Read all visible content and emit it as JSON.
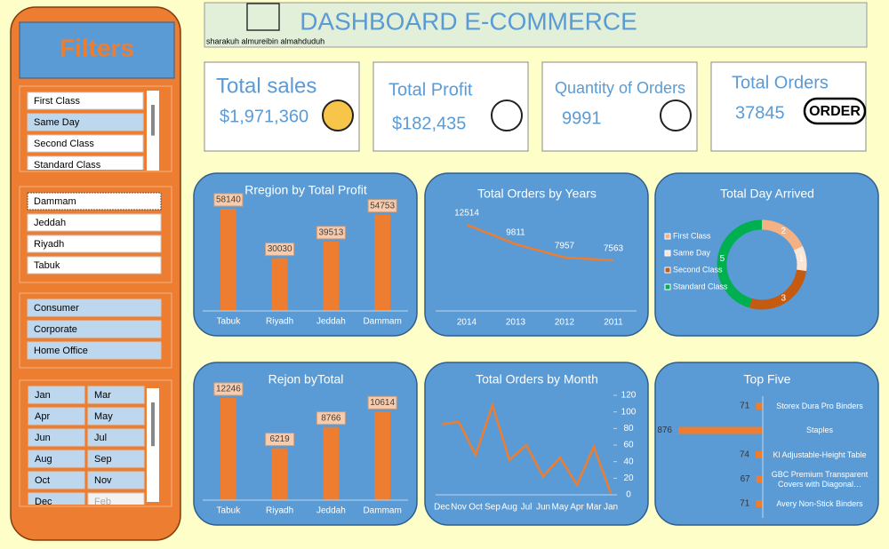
{
  "header": {
    "title": "DASHBOARD E-COMMERCE",
    "author": "sharakuh almureibin almahduduh"
  },
  "filters": {
    "title": "Filters",
    "groups": [
      [
        "First Class",
        "Same Day",
        "Second Class",
        "Standard Class"
      ],
      [
        "Dammam",
        "Jeddah",
        "Riyadh",
        "Tabuk"
      ],
      [
        "Consumer",
        "Corporate",
        "Home Office"
      ],
      [
        "Jan",
        "Mar",
        "Apr",
        "May",
        "Jun",
        "Jul",
        "Aug",
        "Sep",
        "Oct",
        "Nov",
        "Dec",
        "Feb"
      ]
    ]
  },
  "kpis": [
    {
      "label": "Total sales",
      "value": "$1,971,360"
    },
    {
      "label": "Total Profit",
      "value": "$182,435"
    },
    {
      "label": "Quantity of Orders",
      "value": "9991"
    },
    {
      "label": "Total Orders",
      "value": "37845",
      "icon_text": "ORDER"
    }
  ],
  "chart_data": [
    {
      "type": "bar",
      "title": "Rregion by Total Profit",
      "categories": [
        "Tabuk",
        "Riyadh",
        "Jeddah",
        "Dammam"
      ],
      "values": [
        58140,
        30030,
        39513,
        54753
      ],
      "color": "#ed7d31"
    },
    {
      "type": "line",
      "title": "Total Orders by Years",
      "categories": [
        "2014",
        "2013",
        "2012",
        "2011"
      ],
      "values": [
        12514,
        9811,
        7957,
        7563
      ],
      "color": "#ed7d31"
    },
    {
      "type": "donut",
      "title": "Total Day Arrived",
      "categories": [
        "First Class",
        "Same Day",
        "Second Class",
        "Standard Class"
      ],
      "values": [
        2,
        1,
        3,
        5
      ],
      "colors": [
        "#f4b183",
        "#fbe5d6",
        "#c55a11",
        "#00b050"
      ]
    },
    {
      "type": "bar",
      "title": "Rejon byTotal",
      "categories": [
        "Tabuk",
        "Riyadh",
        "Jeddah",
        "Dammam"
      ],
      "values": [
        12246,
        6219,
        8766,
        10614
      ],
      "color": "#ed7d31"
    },
    {
      "type": "line-axis",
      "title": "Total Orders by Month",
      "categories": [
        "Dec",
        "Nov",
        "Oct",
        "Sep",
        "Aug",
        "Jul",
        "Jun",
        "May",
        "Apr",
        "Mar",
        "Jan"
      ],
      "values": [
        85,
        88,
        48,
        108,
        42,
        60,
        22,
        45,
        12,
        58,
        2
      ],
      "color": "#ed7d31",
      "ylim": [
        0,
        120
      ],
      "yticks": [
        0,
        20,
        40,
        60,
        80,
        100,
        120
      ]
    },
    {
      "type": "hbar",
      "title": "Top Five",
      "categories": [
        "Storex Dura Pro Binders",
        "Staples",
        "Kl Adjustable-Height Table",
        "GBC Premium Transparent Covers with Diagonal…",
        "Avery Non-Stick Binders"
      ],
      "values": [
        71,
        876,
        74,
        67,
        71
      ],
      "color": "#ed7d31"
    }
  ]
}
